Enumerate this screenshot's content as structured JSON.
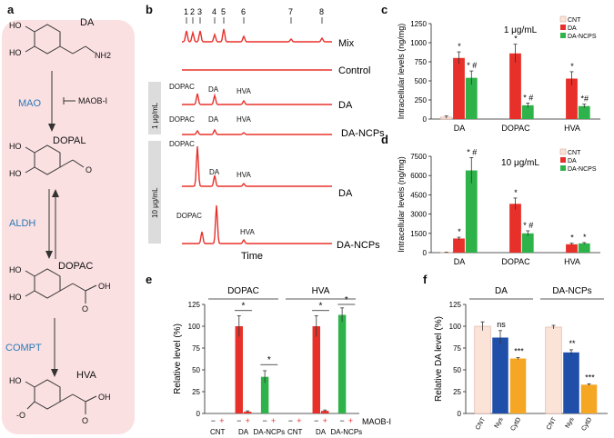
{
  "panel_a": {
    "label": "a",
    "molecules": [
      "DA",
      "DOPAL",
      "DOPAC",
      "HVA"
    ],
    "enzymes": [
      "MAO",
      "ALDH",
      "COMPT"
    ],
    "inhibitor": "MAOB-I",
    "atoms": {
      "ho": "HO",
      "nh2": "NH2",
      "o": "O",
      "oh": "OH",
      "ominus": "-O"
    }
  },
  "panel_b": {
    "label": "b",
    "peak_numbers": [
      "1",
      "2",
      "3",
      "4",
      "5",
      "6",
      "7",
      "8"
    ],
    "traces": [
      "Mix",
      "Control",
      "DA",
      "DA-NCPs",
      "DA",
      "DA-NCPs"
    ],
    "dose_low": "1 μg/mL",
    "dose_high": "10 μg/mL",
    "peak_labels": {
      "dopac": "DOPAC",
      "da": "DA",
      "hva": "HVA"
    },
    "xlabel": "Time"
  },
  "chart_data": [
    {
      "id": "c",
      "type": "bar",
      "title": "1 μg/mL",
      "ylabel": "Intracellular levels (ng/mg)",
      "ylim": [
        0,
        1250
      ],
      "yticks": [
        "0",
        "250",
        "500",
        "750",
        "1000",
        "1250"
      ],
      "categories": [
        "DA",
        "DOPAC",
        "HVA"
      ],
      "series": [
        {
          "name": "CNT",
          "color": "#fbe3d8",
          "values": [
            25,
            0,
            0
          ],
          "err": [
            15,
            0,
            0
          ],
          "marks": [
            "",
            "",
            ""
          ]
        },
        {
          "name": "DA",
          "color": "#e8302a",
          "values": [
            800,
            860,
            530
          ],
          "err": [
            80,
            120,
            90
          ],
          "marks": [
            "*",
            "*",
            "*"
          ]
        },
        {
          "name": "DA-NCPS",
          "color": "#2db34a",
          "values": [
            540,
            180,
            170
          ],
          "err": [
            90,
            30,
            25
          ],
          "marks": [
            "* #",
            "* #",
            "*#"
          ]
        }
      ]
    },
    {
      "id": "d",
      "type": "bar",
      "title": "10 μg/mL",
      "ylabel": "Intracellular levels (ng/mg)",
      "ylim": [
        0,
        7500
      ],
      "yticks": [
        "0",
        "1500",
        "3000",
        "4500",
        "6000",
        "7500"
      ],
      "categories": [
        "DA",
        "DOPAC",
        "HVA"
      ],
      "series": [
        {
          "name": "CNT",
          "color": "#fbe3d8",
          "values": [
            20,
            0,
            0
          ],
          "err": [
            10,
            0,
            0
          ],
          "marks": [
            "",
            "",
            ""
          ]
        },
        {
          "name": "DA",
          "color": "#e8302a",
          "values": [
            1100,
            3800,
            650
          ],
          "err": [
            100,
            450,
            80
          ],
          "marks": [
            "*",
            "*",
            "*"
          ]
        },
        {
          "name": "DA-NCPS",
          "color": "#2db34a",
          "values": [
            6400,
            1500,
            720
          ],
          "err": [
            1000,
            200,
            60
          ],
          "marks": [
            "* #",
            "* #",
            "*"
          ]
        }
      ]
    },
    {
      "id": "e",
      "type": "bar",
      "ylabel": "Relative level (%)",
      "ylim": [
        0,
        125
      ],
      "yticks": [
        "0",
        "25",
        "50",
        "75",
        "100",
        "125"
      ],
      "groups": [
        "DOPAC",
        "HVA"
      ],
      "categories": [
        "CNT",
        "DA",
        "DA-NCPs"
      ],
      "treatment_label": "MAOB-I",
      "treatment_signs": [
        "−",
        "+"
      ],
      "bars": [
        {
          "group": 0,
          "cat": 0,
          "sign": "−",
          "value": 0,
          "err": 0,
          "color": "#e8302a"
        },
        {
          "group": 0,
          "cat": 0,
          "sign": "+",
          "value": 0,
          "err": 0,
          "color": "#e8302a"
        },
        {
          "group": 0,
          "cat": 1,
          "sign": "−",
          "value": 100,
          "err": 12,
          "color": "#e8302a"
        },
        {
          "group": 0,
          "cat": 1,
          "sign": "+",
          "value": 2,
          "err": 1,
          "color": "#e8302a"
        },
        {
          "group": 0,
          "cat": 2,
          "sign": "−",
          "value": 42,
          "err": 7,
          "color": "#2db34a"
        },
        {
          "group": 0,
          "cat": 2,
          "sign": "+",
          "value": 0,
          "err": 0,
          "color": "#2db34a"
        },
        {
          "group": 1,
          "cat": 0,
          "sign": "−",
          "value": 0,
          "err": 0,
          "color": "#e8302a"
        },
        {
          "group": 1,
          "cat": 0,
          "sign": "+",
          "value": 0,
          "err": 0,
          "color": "#e8302a"
        },
        {
          "group": 1,
          "cat": 1,
          "sign": "−",
          "value": 100,
          "err": 12,
          "color": "#e8302a"
        },
        {
          "group": 1,
          "cat": 1,
          "sign": "+",
          "value": 3,
          "err": 1,
          "color": "#e8302a"
        },
        {
          "group": 1,
          "cat": 2,
          "sign": "−",
          "value": 113,
          "err": 8,
          "color": "#2db34a"
        },
        {
          "group": 1,
          "cat": 2,
          "sign": "+",
          "value": 0,
          "err": 0,
          "color": "#2db34a"
        }
      ],
      "significance": [
        "*",
        "*",
        "*",
        "*"
      ]
    },
    {
      "id": "f",
      "type": "bar",
      "ylabel": "Relative DA level (%)",
      "ylim": [
        0,
        125
      ],
      "yticks": [
        "0",
        "25",
        "50",
        "75",
        "100",
        "125"
      ],
      "groups": [
        "DA",
        "DA-NCPs"
      ],
      "categories": [
        "CNT",
        "Nys",
        "CytD"
      ],
      "colors": [
        "#fbe3d8",
        "#1f4fa8",
        "#f5a623"
      ],
      "values": [
        [
          100,
          87,
          63
        ],
        [
          99,
          70,
          33
        ]
      ],
      "err": [
        [
          5,
          8,
          1
        ],
        [
          2,
          3,
          1
        ]
      ],
      "marks": [
        [
          "",
          "ns",
          "***"
        ],
        [
          "",
          "**",
          "***"
        ]
      ]
    }
  ]
}
